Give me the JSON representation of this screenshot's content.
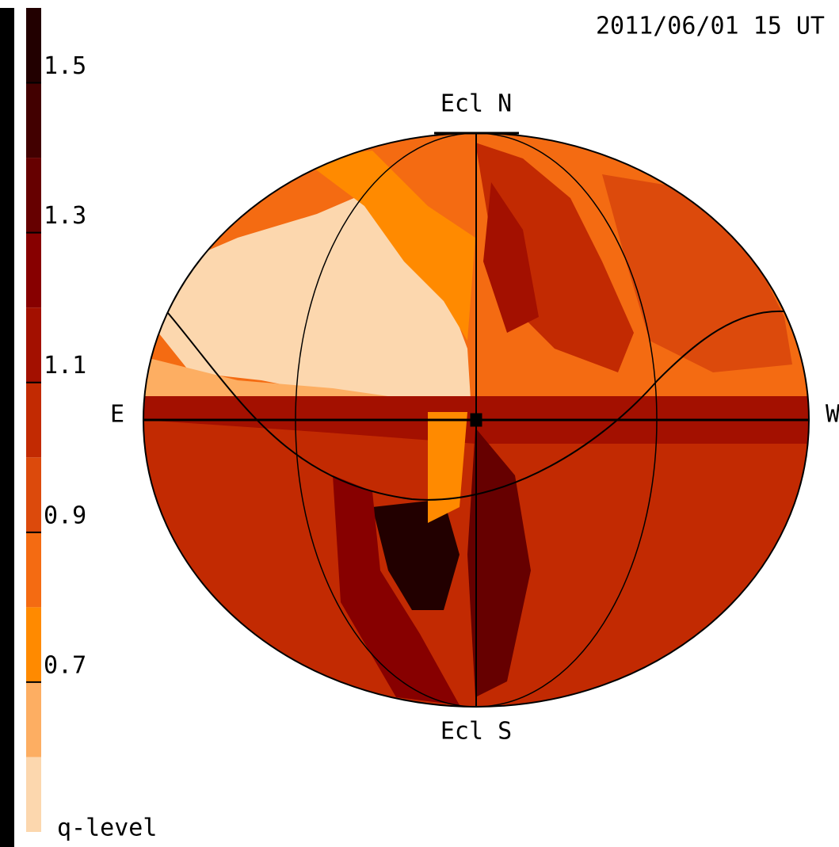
{
  "chart_data": {
    "type": "colorbar",
    "title": "2011/06/01 15 UT",
    "label": "q-level",
    "bins": [
      0.5,
      0.6,
      0.7,
      0.8,
      0.9,
      1.0,
      1.1,
      1.2,
      1.3,
      1.4,
      1.5,
      1.6
    ],
    "colors": [
      "#fcd7ae",
      "#fdae62",
      "#ff8a00",
      "#f46b12",
      "#dc4a0c",
      "#c22a02",
      "#a31000",
      "#870000",
      "#660000",
      "#420000",
      "#220000"
    ],
    "ylim": [
      0.5,
      1.6
    ],
    "yticks": [
      0.7,
      0.9,
      1.1,
      1.3,
      1.5
    ],
    "map_labels": {
      "north": "Ecl N",
      "south": "Ecl S",
      "east": "E",
      "west": "W"
    }
  }
}
